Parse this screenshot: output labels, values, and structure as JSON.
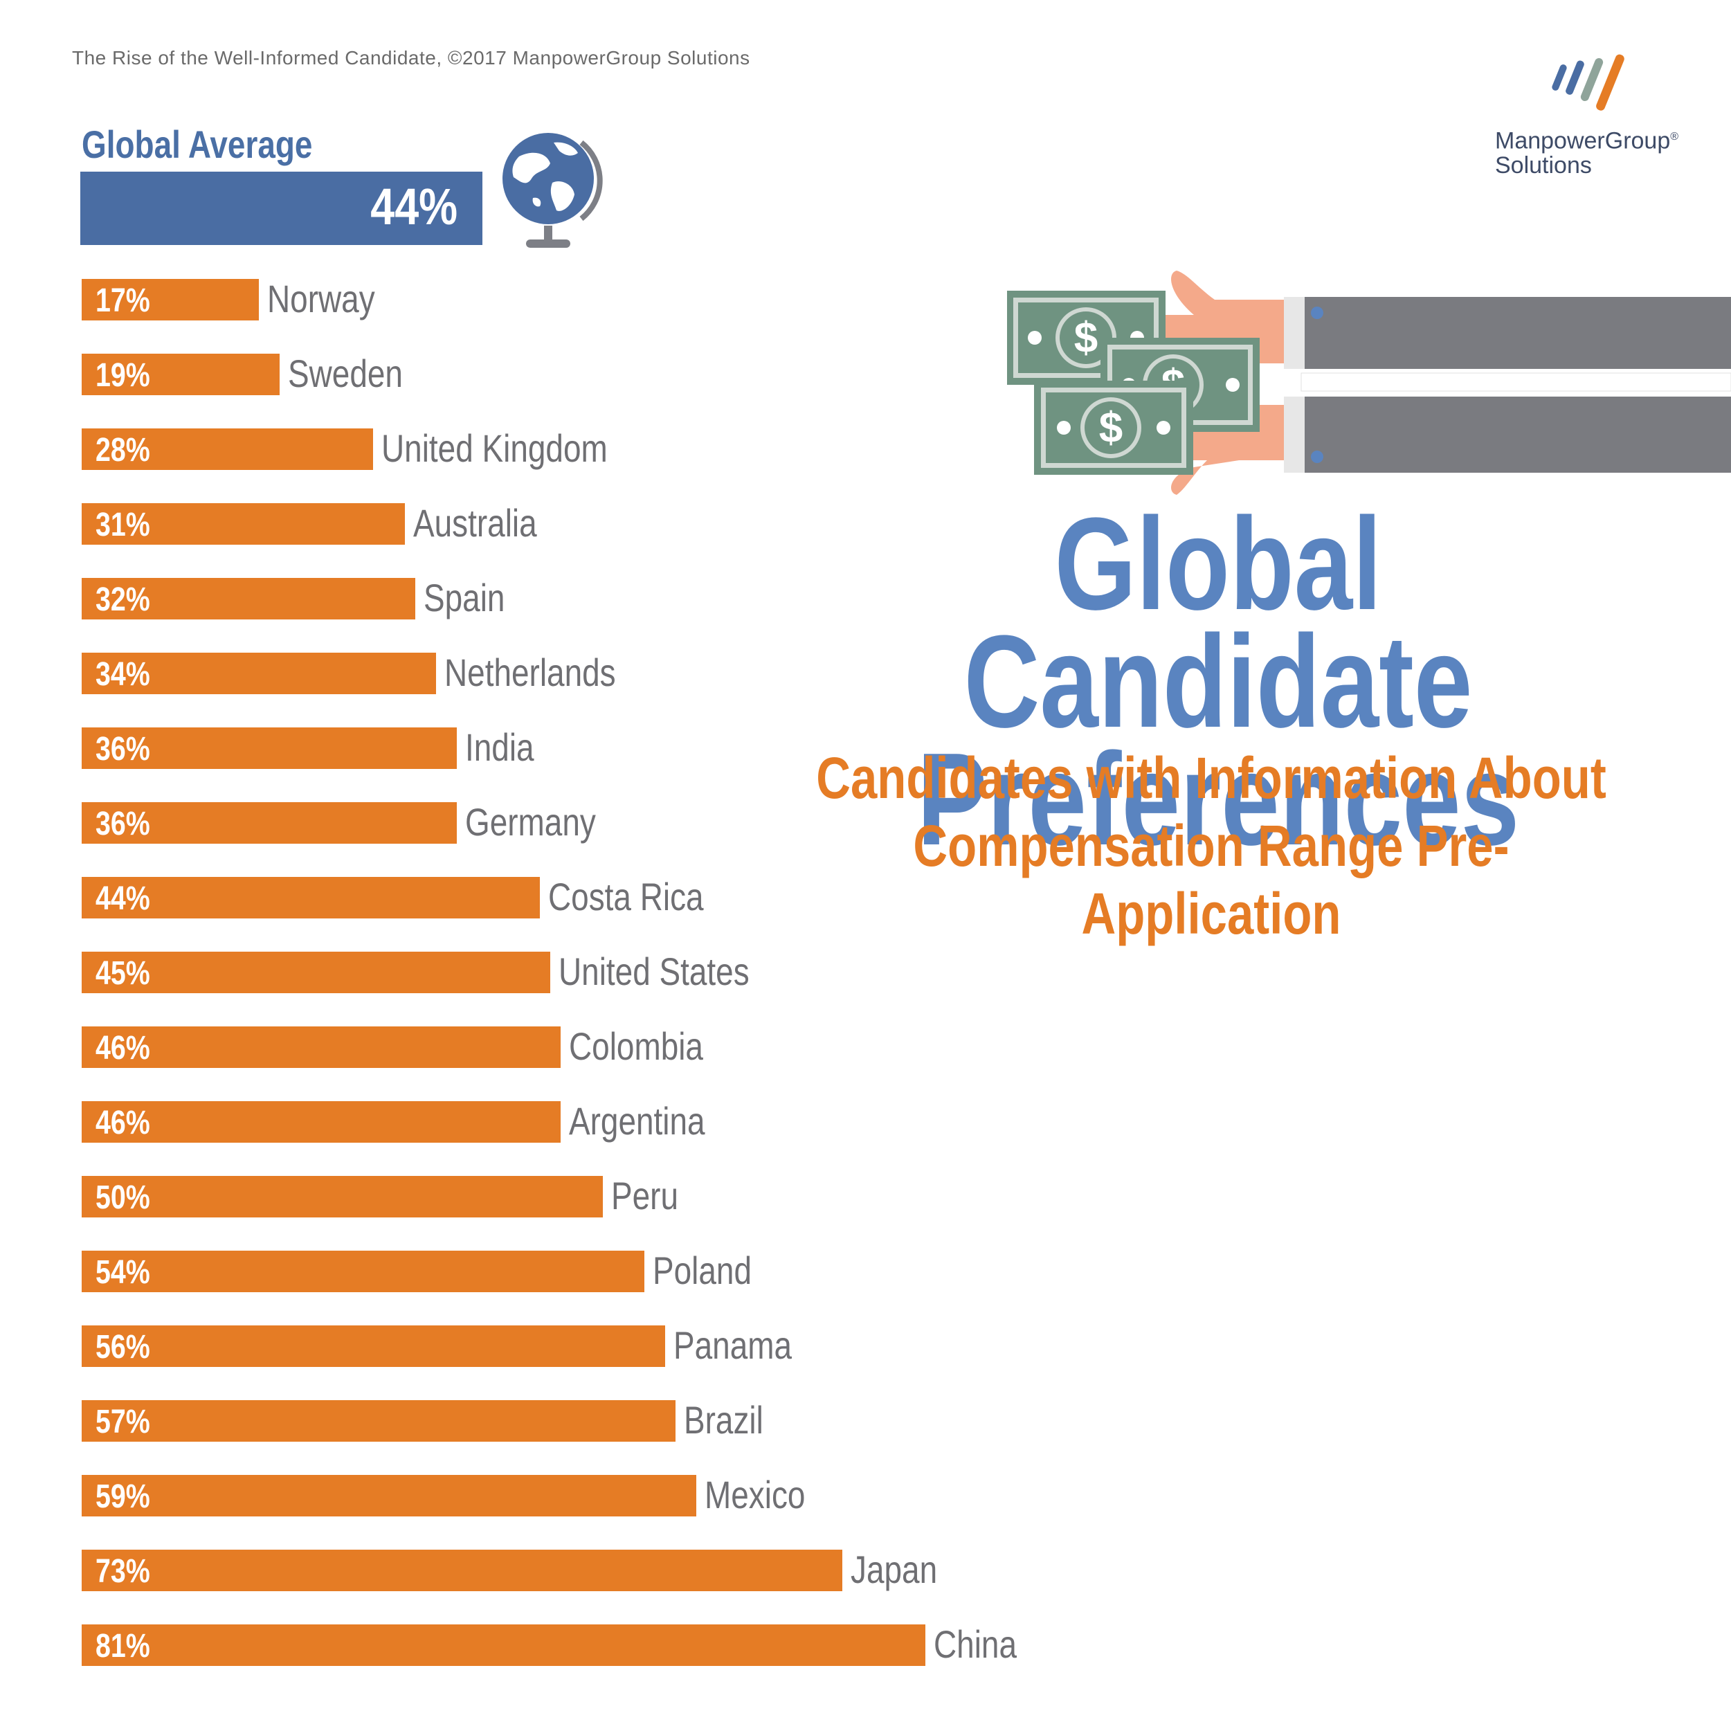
{
  "source": "The Rise of the Well-Informed Candidate, ©2017 ManpowerGroup Solutions",
  "logo": {
    "line1": "ManpowerGroup",
    "registered": "®",
    "line2": "Solutions"
  },
  "global_average": {
    "label": "Global Average",
    "value_label": "44%",
    "value": 44
  },
  "title": "Global Candidate Preferences",
  "subtitle": "Candidates with Information About Compensation Range Pre-Application",
  "colors": {
    "bar": "#e57c25",
    "average_bar": "#4a6da3",
    "title": "#5a84c0",
    "subtitle": "#e57c25",
    "category_text": "#6f6f73"
  },
  "icons": [
    "globe-icon",
    "money-handoff-illustration",
    "manpowergroup-logo-icon"
  ],
  "chart_data": {
    "type": "bar",
    "orientation": "horizontal",
    "title": "Global Candidate Preferences",
    "subtitle": "Candidates with Information About Compensation Range Pre-Application",
    "categories": [
      "Norway",
      "Sweden",
      "United Kingdom",
      "Australia",
      "Spain",
      "Netherlands",
      "India",
      "Germany",
      "Costa Rica",
      "United States",
      "Colombia",
      "Argentina",
      "Peru",
      "Poland",
      "Panama",
      "Brazil",
      "Mexico",
      "Japan",
      "China"
    ],
    "values": [
      17,
      19,
      28,
      31,
      32,
      34,
      36,
      36,
      44,
      45,
      46,
      46,
      50,
      54,
      56,
      57,
      59,
      73,
      81
    ],
    "value_labels": [
      "17%",
      "19%",
      "28%",
      "31%",
      "32%",
      "34%",
      "36%",
      "36%",
      "44%",
      "45%",
      "46%",
      "46%",
      "50%",
      "54%",
      "56%",
      "57%",
      "59%",
      "73%",
      "81%"
    ],
    "xlim": [
      0,
      100
    ],
    "grid": false,
    "legend": "none"
  }
}
